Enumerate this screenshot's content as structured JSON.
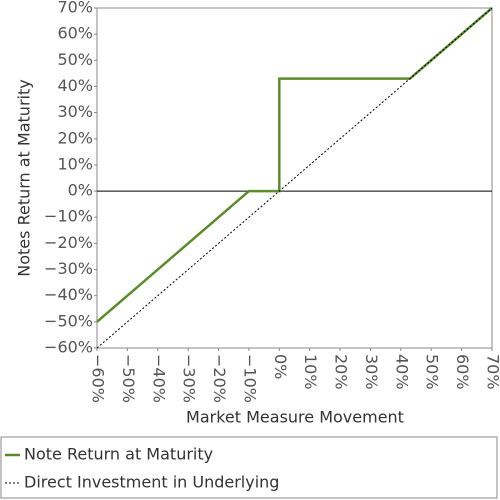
{
  "chart_data": {
    "type": "line",
    "x_label": "Market Measure Movement",
    "y_label": "Notes Return at Maturity",
    "xlim": [
      -60,
      70
    ],
    "ylim": [
      -60,
      70
    ],
    "xticks": [
      {
        "value": -60,
        "label": "−60%"
      },
      {
        "value": -50,
        "label": "−50%"
      },
      {
        "value": -40,
        "label": "−40%"
      },
      {
        "value": -30,
        "label": "−30%"
      },
      {
        "value": -20,
        "label": "−20%"
      },
      {
        "value": -10,
        "label": "−10%"
      },
      {
        "value": 0,
        "label": "0%"
      },
      {
        "value": 10,
        "label": "10%"
      },
      {
        "value": 20,
        "label": "20%"
      },
      {
        "value": 30,
        "label": "30%"
      },
      {
        "value": 40,
        "label": "40%"
      },
      {
        "value": 50,
        "label": "50%"
      },
      {
        "value": 60,
        "label": "60%"
      },
      {
        "value": 70,
        "label": "70%"
      }
    ],
    "yticks": [
      {
        "value": -60,
        "label": "−60%"
      },
      {
        "value": -50,
        "label": "−50%"
      },
      {
        "value": -40,
        "label": "−40%"
      },
      {
        "value": -30,
        "label": "−30%"
      },
      {
        "value": -20,
        "label": "−20%"
      },
      {
        "value": -10,
        "label": "−10%"
      },
      {
        "value": 0,
        "label": "0%"
      },
      {
        "value": 10,
        "label": "10%"
      },
      {
        "value": 20,
        "label": "20%"
      },
      {
        "value": 30,
        "label": "30%"
      },
      {
        "value": 40,
        "label": "40%"
      },
      {
        "value": 50,
        "label": "50%"
      },
      {
        "value": 60,
        "label": "60%"
      },
      {
        "value": 70,
        "label": "70%"
      }
    ],
    "series": [
      {
        "name": "Note Return at Maturity",
        "color": "#5b8c2a",
        "dash": "solid",
        "x": [
          -60,
          -10,
          0,
          0,
          43,
          70
        ],
        "values": [
          -50,
          0,
          0,
          43,
          43,
          70
        ]
      },
      {
        "name": "Direct Investment in Underlying",
        "color": "#000000",
        "dash": "dotted",
        "x": [
          -60,
          70
        ],
        "values": [
          -60,
          70
        ]
      }
    ]
  }
}
